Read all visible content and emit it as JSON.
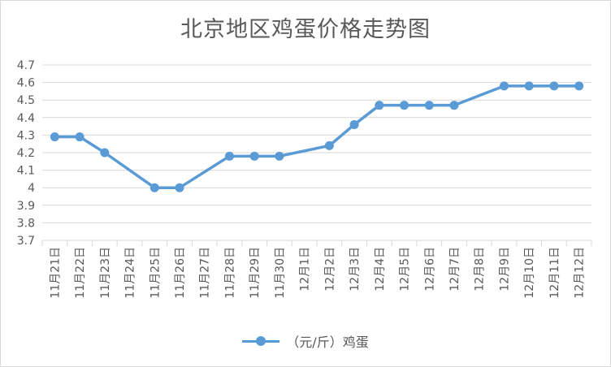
{
  "chart_data": {
    "type": "line",
    "title": "北京地区鸡蛋价格走势图",
    "categories": [
      "11月21日",
      "11月22日",
      "11月23日",
      "11月24日",
      "11月25日",
      "11月26日",
      "11月27日",
      "11月28日",
      "11月29日",
      "11月30日",
      "12月1日",
      "12月2日",
      "12月3日",
      "12月4日",
      "12月5日",
      "12月6日",
      "12月7日",
      "12月8日",
      "12月9日",
      "12月10日",
      "12月11日",
      "12月12日"
    ],
    "series": [
      {
        "name": "（元/斤）鸡蛋",
        "color": "#5b9bd5",
        "values": [
          4.29,
          4.29,
          4.2,
          null,
          4.0,
          4.0,
          null,
          4.18,
          4.18,
          4.18,
          null,
          4.24,
          4.36,
          4.47,
          4.47,
          4.47,
          4.47,
          null,
          4.58,
          4.58,
          4.58,
          4.58
        ]
      }
    ],
    "yticks": [
      "3.7",
      "3.8",
      "3.9",
      "4",
      "4.1",
      "4.2",
      "4.3",
      "4.4",
      "4.5",
      "4.6",
      "4.7"
    ],
    "ylim": [
      3.7,
      4.7
    ],
    "grid": true,
    "legend": "bottom"
  }
}
